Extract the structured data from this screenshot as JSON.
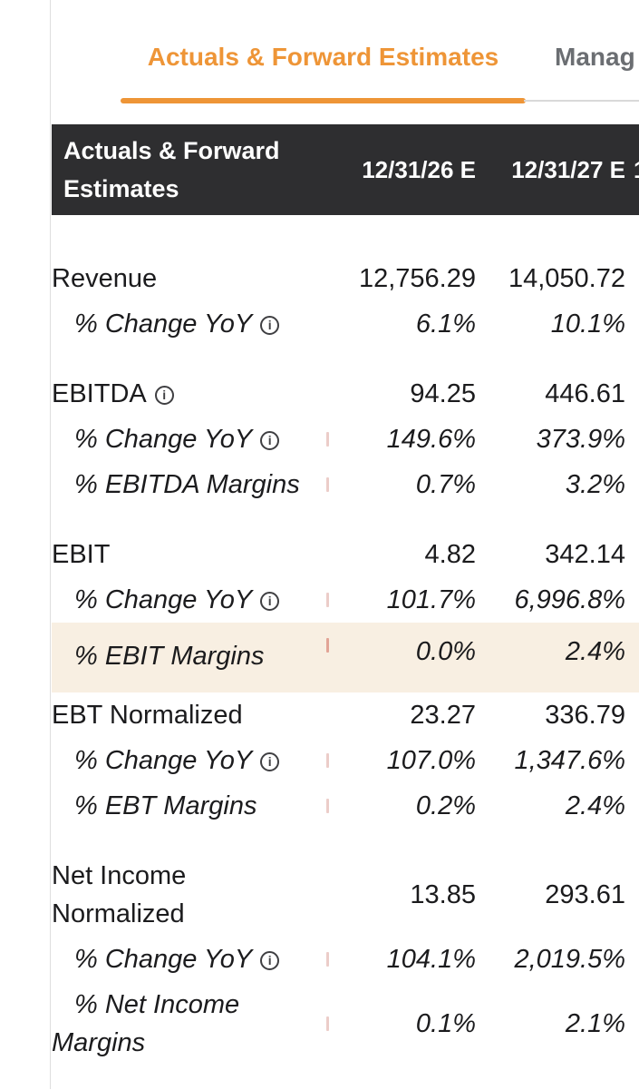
{
  "colors": {
    "accent_orange": "#ee9537",
    "header_bg": "#2e2e30",
    "highlight_bg": "#f8efe2"
  },
  "tabs": {
    "active": {
      "label": "Actuals & Forward Estimates"
    },
    "inactive": {
      "label": "Manag"
    }
  },
  "table": {
    "header": {
      "label": "Actuals & Forward\nEstimates",
      "columns": [
        "12/31/26 E",
        "12/31/27 E",
        "1"
      ]
    },
    "groups": [
      {
        "rows": [
          {
            "label": "Revenue",
            "style": "main",
            "values": [
              "12,756.29",
              "14,050.72"
            ]
          },
          {
            "label": "% Change YoY",
            "style": "sub",
            "info": true,
            "values": [
              "6.1%",
              "10.1%"
            ]
          }
        ]
      },
      {
        "rows": [
          {
            "label": "EBITDA",
            "style": "main",
            "info": true,
            "values": [
              "94.25",
              "446.61"
            ]
          },
          {
            "label": "% Change YoY",
            "style": "sub",
            "info": true,
            "tick": true,
            "values": [
              "149.6%",
              "373.9%"
            ]
          },
          {
            "label": "% EBITDA Margins",
            "style": "sub",
            "tick": true,
            "values": [
              "0.7%",
              "3.2%"
            ]
          }
        ]
      },
      {
        "tight": true,
        "rows": [
          {
            "label": "EBIT",
            "style": "main",
            "values": [
              "4.82",
              "342.14"
            ]
          },
          {
            "label": "% Change YoY",
            "style": "sub",
            "info": true,
            "tick": true,
            "values": [
              "101.7%",
              "6,996.8%"
            ]
          },
          {
            "label": "% EBIT Margins",
            "style": "sub",
            "tick": true,
            "highlight": true,
            "values": [
              "0.0%",
              "2.4%"
            ]
          }
        ]
      },
      {
        "rows": [
          {
            "label": "EBT Normalized",
            "style": "main",
            "values": [
              "23.27",
              "336.79"
            ]
          },
          {
            "label": "% Change YoY",
            "style": "sub",
            "info": true,
            "tick": true,
            "values": [
              "107.0%",
              "1,347.6%"
            ]
          },
          {
            "label": "% EBT Margins",
            "style": "sub",
            "tick": true,
            "values": [
              "0.2%",
              "2.4%"
            ]
          }
        ]
      },
      {
        "rows": [
          {
            "label": "Net Income\nNormalized",
            "style": "main",
            "tall": true,
            "values": [
              "13.85",
              "293.61"
            ]
          },
          {
            "label": "% Change YoY",
            "style": "sub",
            "info": true,
            "tick": true,
            "values": [
              "104.1%",
              "2,019.5%"
            ]
          },
          {
            "label": "% Net Income Margins",
            "style": "sub",
            "tall": true,
            "tick": true,
            "values": [
              "0.1%",
              "2.1%"
            ]
          }
        ]
      }
    ]
  }
}
